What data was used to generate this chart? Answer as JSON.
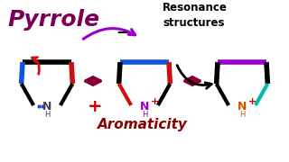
{
  "title": "Pyrrole",
  "title_color": "#7B0055",
  "resonance_text": "Resonance\nstructures",
  "aromaticity_text": "Aromaticity",
  "aromaticity_color": "#8B0000",
  "bg_color": "#ffffff",
  "structures": [
    {
      "top_color": "#000000",
      "left_color": "#1155dd",
      "right_color": "#cc1111",
      "left_bot_color": "#000000",
      "right_bot_color": "#000000",
      "nh_color": "#444444",
      "n_charge": "",
      "has_dots": true
    },
    {
      "top_color": "#1155dd",
      "left_color": "#000000",
      "right_color": "#cc1111",
      "left_bot_color": "#cc1111",
      "right_bot_color": "#000000",
      "nh_color": "#9900cc",
      "n_charge": "+",
      "has_dots": false
    },
    {
      "top_color": "#9900cc",
      "left_color": "#000000",
      "right_color": "#000000",
      "left_bot_color": "#000000",
      "right_bot_color": "#00bbaa",
      "nh_color": "#cc5500",
      "n_charge": "+",
      "has_dots": false
    }
  ],
  "resonance_arrow_color": "#9900cc",
  "double_arrow_color": "#880033",
  "minus_color": "#000000",
  "plus_color": "#cc0000",
  "red_curve_color": "#cc1111",
  "black_curve_color": "#000000"
}
